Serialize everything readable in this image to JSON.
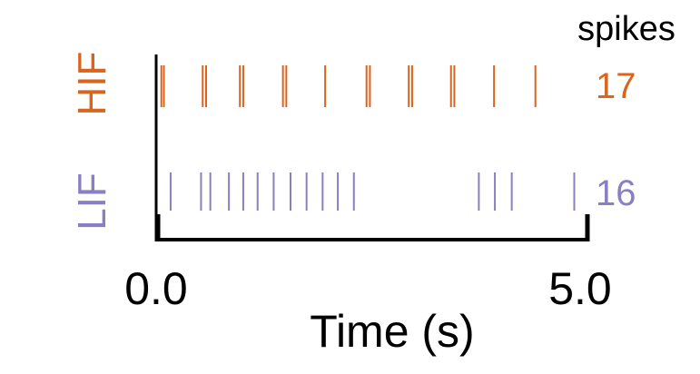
{
  "chart_data": {
    "type": "raster",
    "xlabel": "Time (s)",
    "xlim": [
      0.0,
      5.0
    ],
    "xticks": [
      "0.0",
      "5.0"
    ],
    "count_header": "spikes",
    "grid": false,
    "series": [
      {
        "name": "HIF",
        "color": "#d9641e",
        "spike_count": "17",
        "spike_times": [
          0.04,
          0.07,
          0.53,
          0.57,
          0.97,
          1.01,
          1.48,
          1.52,
          1.98,
          2.47,
          2.51,
          2.97,
          3.01,
          3.47,
          3.51,
          3.98,
          4.47
        ]
      },
      {
        "name": "LIF",
        "color": "#8a7fc2",
        "spike_count": "16",
        "spike_times": [
          0.15,
          0.51,
          0.62,
          0.84,
          1.01,
          1.18,
          1.37,
          1.57,
          1.76,
          1.95,
          2.13,
          2.32,
          3.8,
          3.99,
          4.19,
          4.93
        ]
      }
    ]
  }
}
